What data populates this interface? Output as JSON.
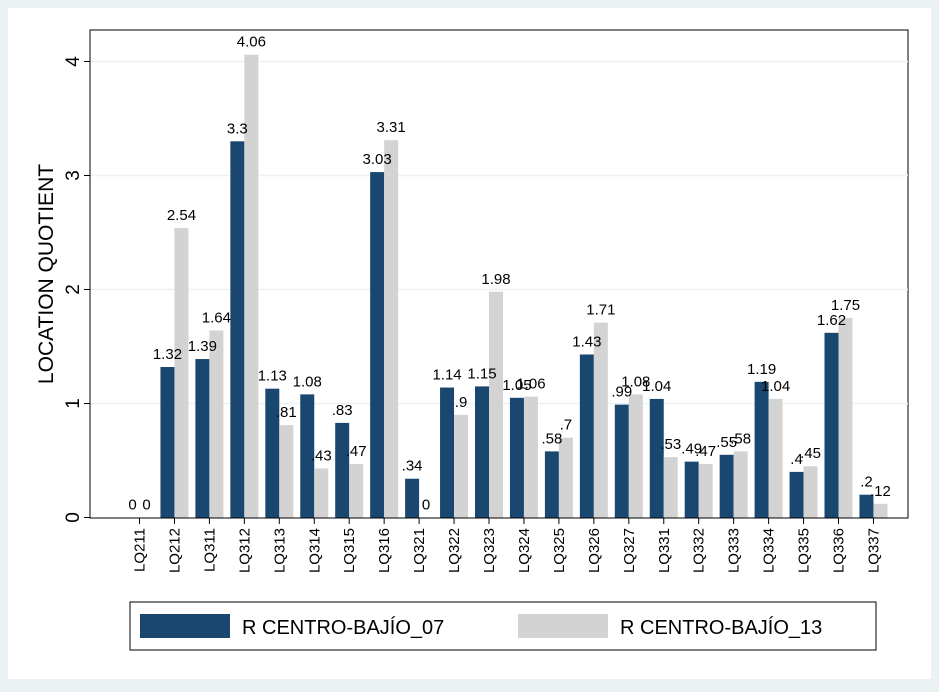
{
  "chart_data": {
    "type": "bar",
    "title": "",
    "xlabel": "",
    "ylabel": "LOCATION QUOTIENT",
    "ylim": [
      0,
      4.2
    ],
    "yticks": [
      "0",
      "1",
      "2",
      "3",
      "4"
    ],
    "grid": true,
    "legend_position": "bottom",
    "categories": [
      "LQ211",
      "LQ212",
      "LQ311",
      "LQ312",
      "LQ313",
      "LQ314",
      "LQ315",
      "LQ316",
      "LQ321",
      "LQ322",
      "LQ323",
      "LQ324",
      "LQ325",
      "LQ326",
      "LQ327",
      "LQ331",
      "LQ332",
      "LQ333",
      "LQ334",
      "LQ335",
      "LQ336",
      "LQ337"
    ],
    "series": [
      {
        "name": "R CENTRO-BAJÍO_07",
        "color": "#1a476f",
        "values": [
          0,
          1.32,
          1.39,
          3.3,
          1.13,
          1.08,
          0.83,
          3.03,
          0.34,
          1.14,
          1.15,
          1.05,
          0.58,
          1.43,
          0.99,
          1.04,
          0.49,
          0.55,
          1.19,
          0.4,
          1.62,
          0.2
        ],
        "labels": [
          "0",
          "1.32",
          "1.39",
          "3.3",
          "1.13",
          "1.08",
          ".83",
          "3.03",
          ".34",
          "1.14",
          "1.15",
          "1.05",
          ".58",
          "1.43",
          ".99",
          "1.04",
          ".49",
          ".55",
          "1.19",
          ".4",
          "1.62",
          ".2"
        ]
      },
      {
        "name": "R CENTRO-BAJÍO_13",
        "color": "#d3d3d3",
        "values": [
          0,
          2.54,
          1.64,
          4.06,
          0.81,
          0.43,
          0.47,
          3.31,
          0,
          0.9,
          1.98,
          1.06,
          0.7,
          1.71,
          1.08,
          0.53,
          0.47,
          0.58,
          1.04,
          0.45,
          1.75,
          0.12
        ],
        "labels": [
          "0",
          "2.54",
          "1.64",
          "4.06",
          ".81",
          ".43",
          ".47",
          "3.31",
          "0",
          ".9",
          "1.98",
          "1.06",
          ".7",
          "1.71",
          "1.08",
          ".53",
          ".47",
          ".58",
          "1.04",
          ".45",
          "1.75",
          ".12"
        ]
      }
    ]
  }
}
